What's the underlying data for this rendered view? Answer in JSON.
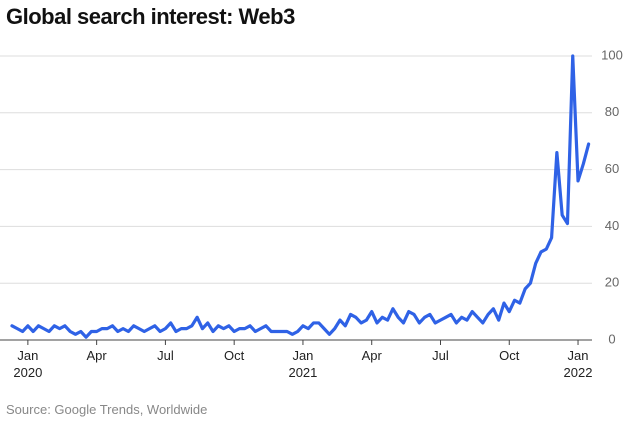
{
  "chart_data": {
    "type": "line",
    "title": "Global search interest: Web3",
    "source": "Source: Google Trends, Worldwide",
    "categories": [
      null,
      null,
      null,
      "Jan 2020",
      null,
      null,
      null,
      null,
      null,
      null,
      null,
      null,
      null,
      null,
      null,
      null,
      "Apr",
      null,
      null,
      null,
      null,
      null,
      null,
      null,
      null,
      null,
      null,
      null,
      null,
      "Jul",
      null,
      null,
      null,
      null,
      null,
      null,
      null,
      null,
      null,
      null,
      null,
      null,
      "Oct",
      null,
      null,
      null,
      null,
      null,
      null,
      null,
      null,
      null,
      null,
      null,
      null,
      "Jan 2021",
      null,
      null,
      null,
      null,
      null,
      null,
      null,
      null,
      null,
      null,
      null,
      null,
      "Apr",
      null,
      null,
      null,
      null,
      null,
      null,
      null,
      null,
      null,
      null,
      null,
      null,
      "Jul",
      null,
      null,
      null,
      null,
      null,
      null,
      null,
      null,
      null,
      null,
      null,
      null,
      "Oct",
      null,
      null,
      null,
      null,
      null,
      null,
      null,
      null,
      null,
      null,
      null,
      null,
      "Jan 2022",
      null,
      null
    ],
    "series": [
      {
        "name": "Web3",
        "color": "#2f62e6",
        "values": [
          5,
          4,
          3,
          5,
          3,
          5,
          4,
          3,
          5,
          4,
          5,
          3,
          2,
          3,
          1,
          3,
          3,
          4,
          4,
          5,
          3,
          4,
          3,
          5,
          4,
          3,
          4,
          5,
          3,
          4,
          6,
          3,
          4,
          4,
          5,
          8,
          4,
          6,
          3,
          5,
          4,
          5,
          3,
          4,
          4,
          5,
          3,
          4,
          5,
          3,
          3,
          3,
          3,
          2,
          3,
          5,
          4,
          6,
          6,
          4,
          2,
          4,
          7,
          5,
          9,
          8,
          6,
          7,
          10,
          6,
          8,
          7,
          11,
          8,
          6,
          10,
          9,
          6,
          8,
          9,
          6,
          7,
          8,
          9,
          6,
          8,
          7,
          10,
          8,
          6,
          9,
          11,
          7,
          13,
          10,
          14,
          13,
          18,
          20,
          27,
          31,
          32,
          36,
          66,
          44,
          41,
          100,
          56,
          62,
          69
        ]
      }
    ],
    "ylim": [
      0,
      100
    ],
    "yticks": [
      0,
      20,
      40,
      60,
      80,
      100
    ],
    "grid": true
  }
}
